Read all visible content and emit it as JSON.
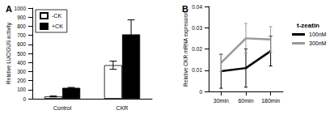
{
  "chart_data": [
    {
      "type": "bar",
      "title": "A",
      "y_label": "Relative LUC/GUS activity",
      "categories": [
        "Control",
        "CKR"
      ],
      "series": [
        {
          "name": "-CK",
          "color": "#ffffff",
          "values": [
            25,
            370
          ],
          "errors": [
            5,
            45
          ]
        },
        {
          "name": "+CK",
          "color": "#000000",
          "values": [
            120,
            710
          ],
          "errors": [
            5,
            160
          ]
        }
      ],
      "ylim": [
        0,
        1000
      ],
      "yticks": [
        0,
        100,
        200,
        300,
        400,
        500,
        600,
        700,
        800,
        900,
        1000
      ],
      "legend": "upper left",
      "grid": false
    },
    {
      "type": "line",
      "title": "B",
      "y_label": "Relative CKR mRNA expression",
      "categories": [
        "30min",
        "60min",
        "180min"
      ],
      "legend_title": "t-zeatin",
      "series": [
        {
          "name": "100nM",
          "color": "#000000",
          "values": [
            0.0095,
            0.011,
            0.019
          ],
          "errors": [
            0.008,
            0.009,
            0.007
          ]
        },
        {
          "name": "300nM",
          "color": "#999999",
          "values": [
            0.0135,
            0.025,
            0.0245
          ],
          "errors": [
            0.004,
            0.007,
            0.006
          ]
        }
      ],
      "ylim": [
        0,
        0.04
      ],
      "yticks": [
        0,
        0.01,
        0.02,
        0.03,
        0.04
      ],
      "legend": "right",
      "grid": false,
      "marker": "none"
    }
  ]
}
